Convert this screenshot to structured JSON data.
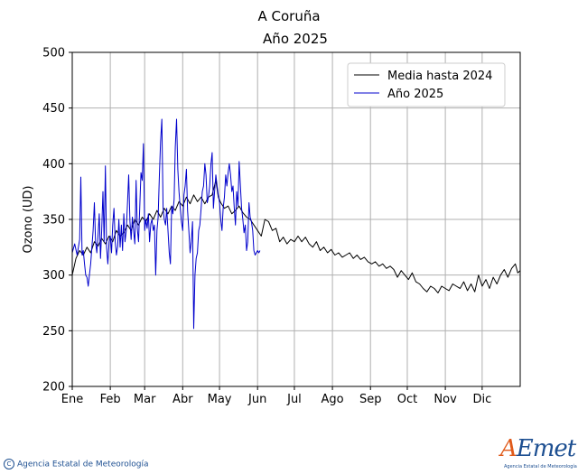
{
  "chart_data": {
    "type": "line",
    "title": "A Coruña",
    "subtitle": "Año 2025",
    "xlabel": "",
    "ylabel": "Ozono (UD)",
    "ylim": [
      200,
      500
    ],
    "yticks": [
      200,
      250,
      300,
      350,
      400,
      450,
      500
    ],
    "xlim": [
      1,
      366
    ],
    "xticks": [
      {
        "label": "Ene",
        "day": 1
      },
      {
        "label": "Feb",
        "day": 32
      },
      {
        "label": "Mar",
        "day": 60
      },
      {
        "label": "Abr",
        "day": 91
      },
      {
        "label": "May",
        "day": 121
      },
      {
        "label": "Jun",
        "day": 152
      },
      {
        "label": "Jul",
        "day": 182
      },
      {
        "label": "Ago",
        "day": 213
      },
      {
        "label": "Sep",
        "day": 244
      },
      {
        "label": "Oct",
        "day": 274
      },
      {
        "label": "Nov",
        "day": 305
      },
      {
        "label": "Dic",
        "day": 335
      }
    ],
    "grid": true,
    "legend_position": "top-right",
    "series": [
      {
        "name": "Media hasta 2024",
        "color": "#000000",
        "x_unit": "day of year",
        "points": [
          [
            1,
            300
          ],
          [
            4,
            315
          ],
          [
            7,
            322
          ],
          [
            10,
            318
          ],
          [
            13,
            325
          ],
          [
            16,
            320
          ],
          [
            19,
            330
          ],
          [
            22,
            326
          ],
          [
            25,
            333
          ],
          [
            28,
            328
          ],
          [
            31,
            335
          ],
          [
            34,
            330
          ],
          [
            37,
            340
          ],
          [
            40,
            335
          ],
          [
            43,
            338
          ],
          [
            46,
            345
          ],
          [
            49,
            340
          ],
          [
            52,
            350
          ],
          [
            55,
            345
          ],
          [
            58,
            352
          ],
          [
            61,
            348
          ],
          [
            64,
            355
          ],
          [
            67,
            350
          ],
          [
            70,
            358
          ],
          [
            73,
            352
          ],
          [
            76,
            360
          ],
          [
            79,
            355
          ],
          [
            82,
            362
          ],
          [
            85,
            358
          ],
          [
            88,
            366
          ],
          [
            91,
            362
          ],
          [
            94,
            370
          ],
          [
            97,
            364
          ],
          [
            100,
            372
          ],
          [
            103,
            366
          ],
          [
            106,
            370
          ],
          [
            109,
            364
          ],
          [
            112,
            370
          ],
          [
            115,
            372
          ],
          [
            118,
            385
          ],
          [
            120,
            370
          ],
          [
            122,
            365
          ],
          [
            125,
            360
          ],
          [
            128,
            362
          ],
          [
            131,
            355
          ],
          [
            134,
            358
          ],
          [
            137,
            362
          ],
          [
            140,
            356
          ],
          [
            143,
            352
          ],
          [
            146,
            350
          ],
          [
            149,
            345
          ],
          [
            152,
            340
          ],
          [
            155,
            335
          ],
          [
            158,
            350
          ],
          [
            161,
            348
          ],
          [
            164,
            340
          ],
          [
            167,
            342
          ],
          [
            170,
            330
          ],
          [
            173,
            334
          ],
          [
            176,
            328
          ],
          [
            179,
            332
          ],
          [
            182,
            330
          ],
          [
            185,
            335
          ],
          [
            188,
            330
          ],
          [
            191,
            334
          ],
          [
            194,
            328
          ],
          [
            197,
            325
          ],
          [
            200,
            330
          ],
          [
            203,
            322
          ],
          [
            206,
            325
          ],
          [
            209,
            320
          ],
          [
            212,
            323
          ],
          [
            215,
            318
          ],
          [
            218,
            320
          ],
          [
            221,
            316
          ],
          [
            224,
            318
          ],
          [
            227,
            320
          ],
          [
            230,
            315
          ],
          [
            233,
            318
          ],
          [
            236,
            314
          ],
          [
            239,
            316
          ],
          [
            242,
            312
          ],
          [
            245,
            310
          ],
          [
            248,
            312
          ],
          [
            251,
            308
          ],
          [
            254,
            310
          ],
          [
            257,
            306
          ],
          [
            260,
            308
          ],
          [
            263,
            305
          ],
          [
            266,
            298
          ],
          [
            269,
            304
          ],
          [
            272,
            300
          ],
          [
            275,
            296
          ],
          [
            278,
            302
          ],
          [
            281,
            294
          ],
          [
            284,
            292
          ],
          [
            287,
            288
          ],
          [
            290,
            285
          ],
          [
            293,
            290
          ],
          [
            296,
            288
          ],
          [
            299,
            284
          ],
          [
            302,
            290
          ],
          [
            305,
            288
          ],
          [
            308,
            286
          ],
          [
            311,
            292
          ],
          [
            314,
            290
          ],
          [
            317,
            288
          ],
          [
            320,
            294
          ],
          [
            323,
            286
          ],
          [
            326,
            292
          ],
          [
            329,
            285
          ],
          [
            332,
            300
          ],
          [
            335,
            290
          ],
          [
            338,
            296
          ],
          [
            341,
            288
          ],
          [
            344,
            298
          ],
          [
            347,
            292
          ],
          [
            350,
            300
          ],
          [
            353,
            305
          ],
          [
            356,
            298
          ],
          [
            359,
            306
          ],
          [
            362,
            310
          ],
          [
            364,
            302
          ],
          [
            366,
            304
          ]
        ]
      },
      {
        "name": "Año 2025",
        "color": "#0000cc",
        "x_unit": "day of year",
        "points": [
          [
            1,
            320
          ],
          [
            3,
            328
          ],
          [
            5,
            318
          ],
          [
            7,
            332
          ],
          [
            8,
            388
          ],
          [
            9,
            318
          ],
          [
            10,
            322
          ],
          [
            11,
            310
          ],
          [
            12,
            300
          ],
          [
            13,
            298
          ],
          [
            14,
            290
          ],
          [
            15,
            300
          ],
          [
            16,
            310
          ],
          [
            18,
            340
          ],
          [
            19,
            365
          ],
          [
            20,
            330
          ],
          [
            21,
            320
          ],
          [
            22,
            335
          ],
          [
            23,
            355
          ],
          [
            24,
            315
          ],
          [
            25,
            340
          ],
          [
            26,
            375
          ],
          [
            27,
            330
          ],
          [
            28,
            398
          ],
          [
            29,
            325
          ],
          [
            30,
            310
          ],
          [
            31,
            330
          ],
          [
            32,
            335
          ],
          [
            33,
            320
          ],
          [
            34,
            345
          ],
          [
            35,
            360
          ],
          [
            36,
            330
          ],
          [
            37,
            318
          ],
          [
            38,
            326
          ],
          [
            39,
            350
          ],
          [
            40,
            325
          ],
          [
            41,
            345
          ],
          [
            42,
            322
          ],
          [
            43,
            355
          ],
          [
            44,
            330
          ],
          [
            45,
            340
          ],
          [
            46,
            365
          ],
          [
            47,
            390
          ],
          [
            48,
            348
          ],
          [
            49,
            332
          ],
          [
            50,
            352
          ],
          [
            51,
            340
          ],
          [
            52,
            328
          ],
          [
            53,
            385
          ],
          [
            54,
            342
          ],
          [
            55,
            330
          ],
          [
            56,
            360
          ],
          [
            57,
            392
          ],
          [
            58,
            385
          ],
          [
            59,
            418
          ],
          [
            60,
            340
          ],
          [
            61,
            350
          ],
          [
            62,
            342
          ],
          [
            63,
            355
          ],
          [
            64,
            330
          ],
          [
            65,
            346
          ],
          [
            66,
            350
          ],
          [
            67,
            340
          ],
          [
            68,
            345
          ],
          [
            69,
            300
          ],
          [
            70,
            340
          ],
          [
            71,
            352
          ],
          [
            72,
            390
          ],
          [
            73,
            420
          ],
          [
            74,
            440
          ],
          [
            75,
            360
          ],
          [
            76,
            350
          ],
          [
            77,
            345
          ],
          [
            78,
            360
          ],
          [
            79,
            340
          ],
          [
            80,
            320
          ],
          [
            81,
            310
          ],
          [
            82,
            362
          ],
          [
            83,
            355
          ],
          [
            84,
            368
          ],
          [
            85,
            415
          ],
          [
            86,
            440
          ],
          [
            87,
            395
          ],
          [
            88,
            375
          ],
          [
            89,
            360
          ],
          [
            90,
            348
          ],
          [
            91,
            340
          ],
          [
            92,
            372
          ],
          [
            93,
            380
          ],
          [
            94,
            395
          ],
          [
            95,
            358
          ],
          [
            96,
            340
          ],
          [
            97,
            320
          ],
          [
            98,
            330
          ],
          [
            99,
            348
          ],
          [
            100,
            252
          ],
          [
            101,
            300
          ],
          [
            102,
            315
          ],
          [
            103,
            320
          ],
          [
            104,
            340
          ],
          [
            105,
            345
          ],
          [
            106,
            360
          ],
          [
            107,
            375
          ],
          [
            108,
            380
          ],
          [
            109,
            400
          ],
          [
            110,
            390
          ],
          [
            111,
            365
          ],
          [
            112,
            370
          ],
          [
            113,
            380
          ],
          [
            114,
            400
          ],
          [
            115,
            410
          ],
          [
            116,
            360
          ],
          [
            117,
            375
          ],
          [
            118,
            390
          ],
          [
            119,
            380
          ],
          [
            120,
            372
          ],
          [
            121,
            365
          ],
          [
            122,
            350
          ],
          [
            123,
            340
          ],
          [
            124,
            360
          ],
          [
            125,
            370
          ],
          [
            126,
            390
          ],
          [
            127,
            380
          ],
          [
            128,
            392
          ],
          [
            129,
            400
          ],
          [
            130,
            390
          ],
          [
            131,
            375
          ],
          [
            132,
            380
          ],
          [
            133,
            360
          ],
          [
            134,
            345
          ],
          [
            135,
            375
          ],
          [
            136,
            362
          ],
          [
            137,
            402
          ],
          [
            138,
            380
          ],
          [
            139,
            360
          ],
          [
            140,
            350
          ],
          [
            141,
            338
          ],
          [
            142,
            345
          ],
          [
            143,
            322
          ],
          [
            144,
            330
          ],
          [
            145,
            365
          ],
          [
            146,
            352
          ],
          [
            147,
            348
          ],
          [
            148,
            340
          ],
          [
            149,
            322
          ],
          [
            150,
            318
          ],
          [
            151,
            320
          ],
          [
            152,
            322
          ],
          [
            153,
            320
          ],
          [
            154,
            322
          ]
        ]
      }
    ]
  },
  "footer": {
    "credit_symbol": "C",
    "credit_text": "Agencia Estatal de Meteorología",
    "logo_text_a": "A",
    "logo_text_rest": "Emet",
    "logo_subtitle": "Agencia Estatal de Meteorología"
  }
}
